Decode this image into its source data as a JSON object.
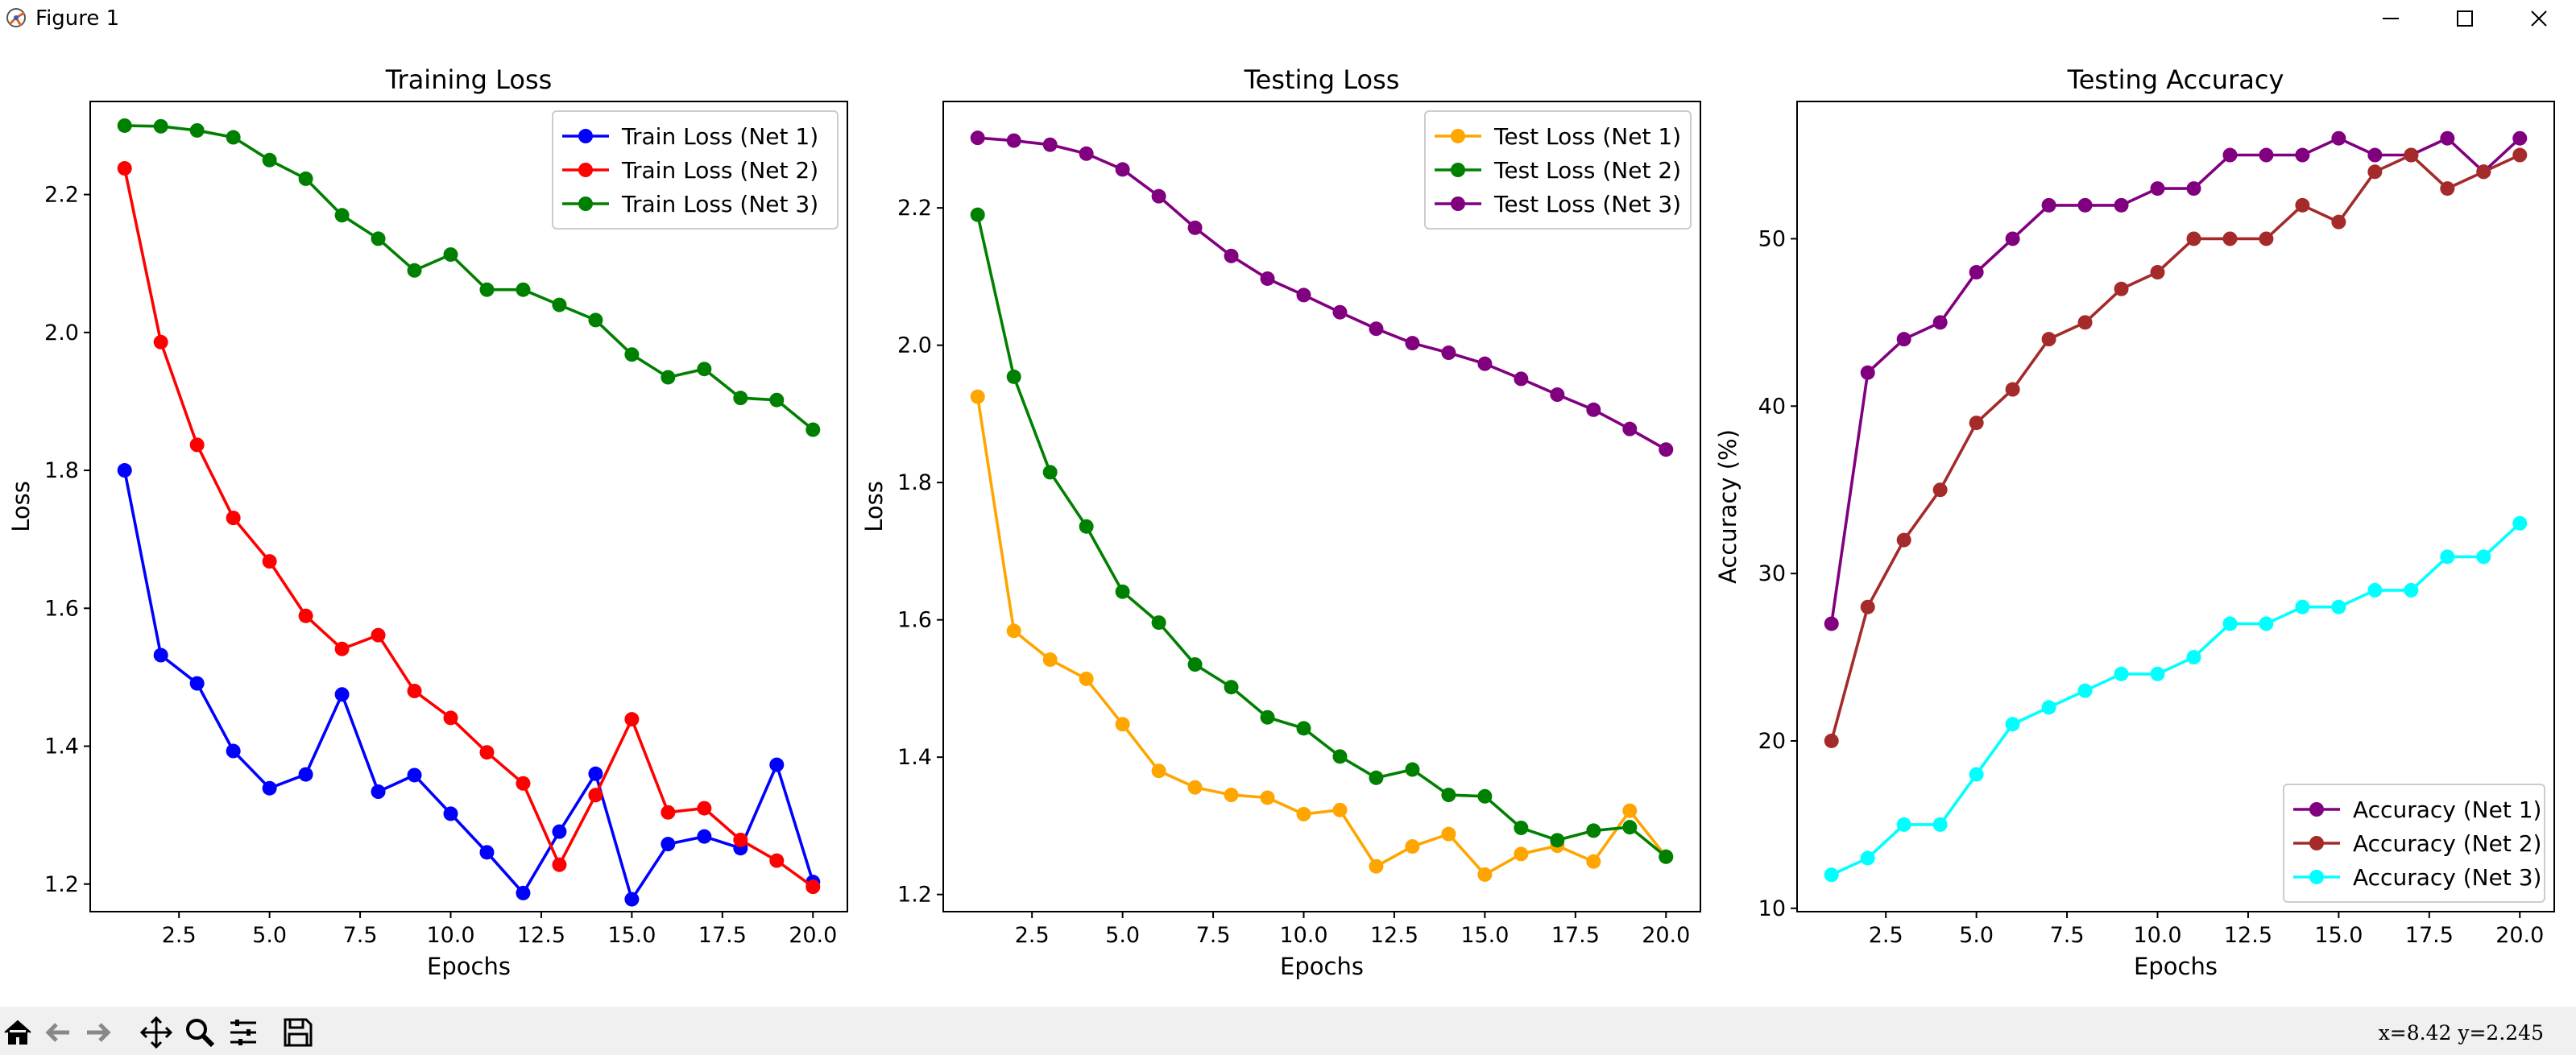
{
  "window": {
    "title": "Figure 1",
    "coords": "x=8.42  y=2.245"
  },
  "toolbar": {
    "tools": [
      "home-icon",
      "back-icon",
      "forward-icon",
      "pan-icon",
      "zoom-icon",
      "configure-subplots-icon",
      "save-icon"
    ]
  },
  "chart_data": [
    {
      "type": "line",
      "title": "Training Loss",
      "xlabel": "Epochs",
      "ylabel": "Loss",
      "xlim": [
        0.05,
        20.95
      ],
      "ylim": [
        1.16,
        2.335
      ],
      "xticks": [
        2.5,
        5.0,
        7.5,
        10.0,
        12.5,
        15.0,
        17.5,
        20.0
      ],
      "xtick_labels": [
        "2.5",
        "5.0",
        "7.5",
        "10.0",
        "12.5",
        "15.0",
        "17.5",
        "20.0"
      ],
      "yticks": [
        1.2,
        1.4,
        1.6,
        1.8,
        2.0,
        2.2
      ],
      "ytick_labels": [
        "1.2",
        "1.4",
        "1.6",
        "1.8",
        "2.0",
        "2.2"
      ],
      "legend_position": "upper right",
      "x": [
        1,
        2,
        3,
        4,
        5,
        6,
        7,
        8,
        9,
        10,
        11,
        12,
        13,
        14,
        15,
        16,
        17,
        18,
        19,
        20
      ],
      "series": [
        {
          "name": "Train Loss (Net 1)",
          "color": "#0000ff",
          "values": [
            1.8,
            1.532,
            1.491,
            1.393,
            1.339,
            1.359,
            1.475,
            1.334,
            1.358,
            1.302,
            1.246,
            1.187,
            1.276,
            1.36,
            1.178,
            1.258,
            1.269,
            1.252,
            1.373,
            1.203
          ]
        },
        {
          "name": "Train Loss (Net 2)",
          "color": "#ff0000",
          "values": [
            2.238,
            1.986,
            1.837,
            1.731,
            1.668,
            1.589,
            1.541,
            1.561,
            1.48,
            1.441,
            1.391,
            1.346,
            1.228,
            1.329,
            1.439,
            1.304,
            1.31,
            1.264,
            1.234,
            1.196
          ]
        },
        {
          "name": "Train Loss (Net 3)",
          "color": "#008000",
          "values": [
            2.3,
            2.299,
            2.293,
            2.283,
            2.25,
            2.223,
            2.17,
            2.136,
            2.09,
            2.113,
            2.062,
            2.062,
            2.04,
            2.018,
            1.968,
            1.935,
            1.947,
            1.905,
            1.902,
            1.859
          ]
        }
      ]
    },
    {
      "type": "line",
      "title": "Testing Loss",
      "xlabel": "Epochs",
      "ylabel": "Loss",
      "xlim": [
        0.05,
        20.95
      ],
      "ylim": [
        1.175,
        2.355
      ],
      "xticks": [
        2.5,
        5.0,
        7.5,
        10.0,
        12.5,
        15.0,
        17.5,
        20.0
      ],
      "xtick_labels": [
        "2.5",
        "5.0",
        "7.5",
        "10.0",
        "12.5",
        "15.0",
        "17.5",
        "20.0"
      ],
      "yticks": [
        1.2,
        1.4,
        1.6,
        1.8,
        2.0,
        2.2
      ],
      "ytick_labels": [
        "1.2",
        "1.4",
        "1.6",
        "1.8",
        "2.0",
        "2.2"
      ],
      "legend_position": "upper right",
      "x": [
        1,
        2,
        3,
        4,
        5,
        6,
        7,
        8,
        9,
        10,
        11,
        12,
        13,
        14,
        15,
        16,
        17,
        18,
        19,
        20
      ],
      "series": [
        {
          "name": "Test Loss (Net 1)",
          "color": "#ffa500",
          "values": [
            1.925,
            1.584,
            1.542,
            1.514,
            1.448,
            1.38,
            1.356,
            1.345,
            1.341,
            1.317,
            1.323,
            1.241,
            1.27,
            1.288,
            1.229,
            1.259,
            1.271,
            1.248,
            1.322,
            1.255
          ]
        },
        {
          "name": "Test Loss (Net 2)",
          "color": "#008000",
          "values": [
            2.19,
            1.954,
            1.815,
            1.736,
            1.641,
            1.596,
            1.535,
            1.502,
            1.458,
            1.442,
            1.401,
            1.37,
            1.382,
            1.345,
            1.343,
            1.297,
            1.279,
            1.293,
            1.298,
            1.255
          ]
        },
        {
          "name": "Test Loss (Net 3)",
          "color": "#800080",
          "values": [
            2.302,
            2.298,
            2.292,
            2.279,
            2.256,
            2.217,
            2.171,
            2.13,
            2.097,
            2.073,
            2.048,
            2.024,
            2.003,
            1.989,
            1.973,
            1.951,
            1.928,
            1.906,
            1.878,
            1.848
          ]
        }
      ]
    },
    {
      "type": "line",
      "title": "Testing Accuracy",
      "xlabel": "Epochs",
      "ylabel": "Accuracy (%)",
      "xlim": [
        0.05,
        20.95
      ],
      "ylim": [
        9.8,
        58.2
      ],
      "xticks": [
        2.5,
        5.0,
        7.5,
        10.0,
        12.5,
        15.0,
        17.5,
        20.0
      ],
      "xtick_labels": [
        "2.5",
        "5.0",
        "7.5",
        "10.0",
        "12.5",
        "15.0",
        "17.5",
        "20.0"
      ],
      "yticks": [
        10,
        20,
        30,
        40,
        50
      ],
      "ytick_labels": [
        "10",
        "20",
        "30",
        "40",
        "50"
      ],
      "legend_position": "lower right",
      "x": [
        1,
        2,
        3,
        4,
        5,
        6,
        7,
        8,
        9,
        10,
        11,
        12,
        13,
        14,
        15,
        16,
        17,
        18,
        19,
        20
      ],
      "series": [
        {
          "name": "Accuracy (Net 1)",
          "color": "#800080",
          "values": [
            27,
            42,
            44,
            45,
            48,
            50,
            52,
            52,
            52,
            53,
            53,
            55,
            55,
            55,
            56,
            55,
            55,
            56,
            54,
            56
          ]
        },
        {
          "name": "Accuracy (Net 2)",
          "color": "#a52a2a",
          "values": [
            20,
            28,
            32,
            35,
            39,
            41,
            44,
            45,
            47,
            48,
            50,
            50,
            50,
            52,
            51,
            54,
            55,
            53,
            54,
            55
          ]
        },
        {
          "name": "Accuracy (Net 3)",
          "color": "#00ffff",
          "values": [
            12,
            13,
            15,
            15,
            18,
            21,
            22,
            23,
            24,
            24,
            25,
            27,
            27,
            28,
            28,
            29,
            29,
            31,
            31,
            33
          ]
        }
      ]
    }
  ]
}
